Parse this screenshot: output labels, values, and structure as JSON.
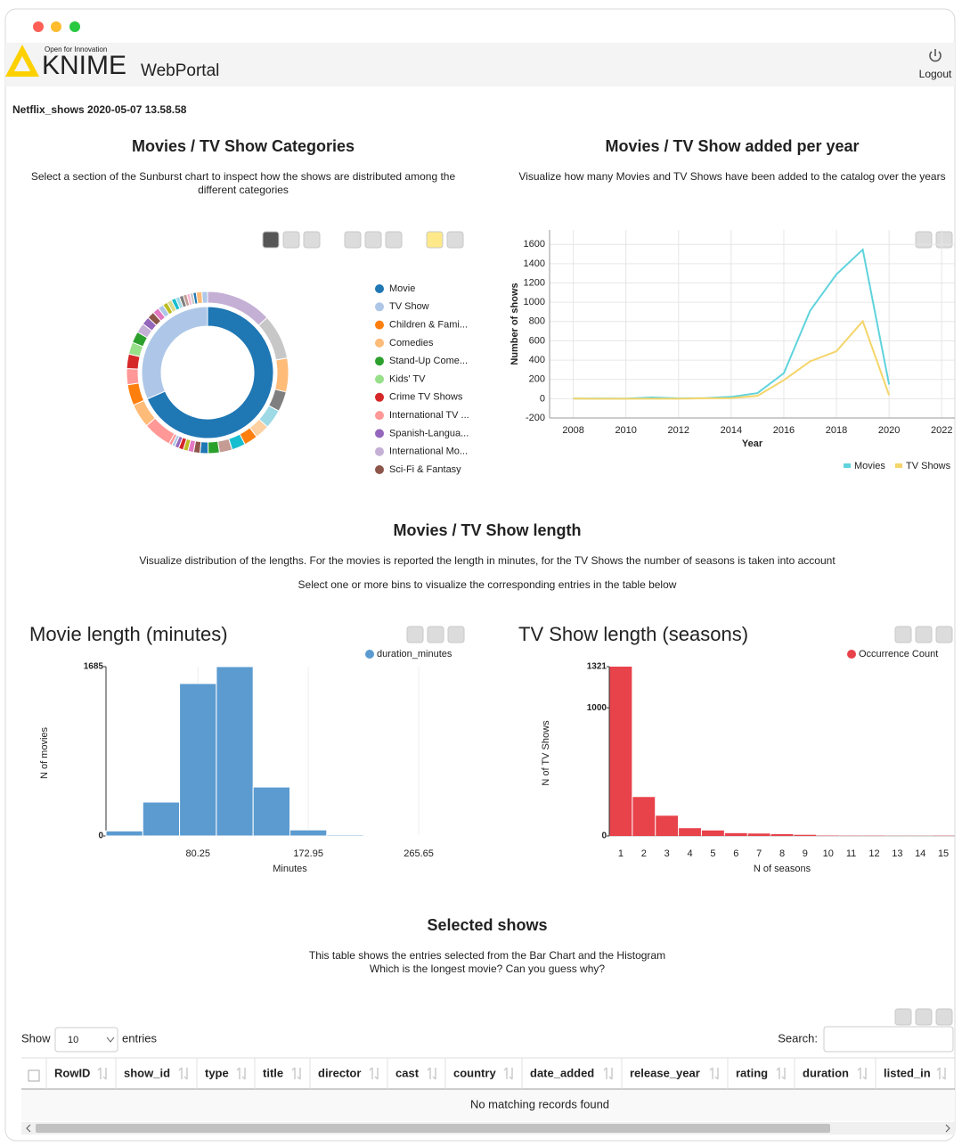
{
  "header": {
    "tagline": "Open for Innovation",
    "logo": "KNIME",
    "product": "WebPortal",
    "logout": "Logout"
  },
  "workflow_name": "Netflix_shows 2020-05-07 13.58.58",
  "sections": [
    {
      "title": "Movies / TV Show Categories",
      "description": [
        "Select a section of the Sunburst chart to inspect how the shows are distributed among the",
        "different categories"
      ]
    },
    {
      "title": "Movies / TV Show added per year",
      "description": [
        "Visualize how many Movies and TV Shows have been added to the catalog over the years"
      ]
    },
    {
      "title": "Movies / TV Show length",
      "description": [
        "Visualize distribution of the lengths. For the movies is reported the length in minutes, for the TV Shows the number of seasons is taken into account",
        "Select one or more bins to visualize the corresponding entries in the table below"
      ]
    },
    {
      "title": "Selected shows",
      "description": [
        "This table shows the entries selected from the Bar Chart and the Histogram",
        "Which is the longest movie? Can you guess why?"
      ]
    }
  ],
  "chart_data": [
    {
      "type": "sunburst",
      "legend": [
        {
          "name": "Movie",
          "color": "#1f77b4"
        },
        {
          "name": "TV Show",
          "color": "#aec7e8"
        },
        {
          "name": "Children & Fami...",
          "color": "#ff7f0e"
        },
        {
          "name": "Comedies",
          "color": "#ffbb78"
        },
        {
          "name": "Stand-Up Come...",
          "color": "#2ca02c"
        },
        {
          "name": "Kids' TV",
          "color": "#98df8a"
        },
        {
          "name": "Crime TV Shows",
          "color": "#d62728"
        },
        {
          "name": "International TV ...",
          "color": "#ff9896"
        },
        {
          "name": "Spanish-Langua...",
          "color": "#9467bd"
        },
        {
          "name": "International Mo...",
          "color": "#c5b0d5"
        },
        {
          "name": "Sci-Fi & Fantasy",
          "color": "#8c564b"
        }
      ],
      "rings": [
        {
          "values": [
            4265,
            1969
          ],
          "colors": [
            "#1f77b4",
            "#aec7e8"
          ]
        },
        {
          "values": [
            820,
            560,
            420,
            250,
            240,
            180,
            170,
            170,
            160,
            140,
            100,
            80,
            70,
            60,
            60,
            50,
            40,
            40,
            355,
            300,
            260,
            200,
            180,
            150,
            140,
            120,
            100,
            90,
            80,
            70,
            60,
            60,
            55,
            50,
            50,
            45,
            40,
            40,
            39,
            70,
            70
          ],
          "colors": [
            "#c5b0d5",
            "#c7c7c7",
            "#ffbb78",
            "#7f7f7f",
            "#9edae5",
            "#fdd0a2",
            "#ff7f0e",
            "#17becf",
            "#c49c94",
            "#2ca02c",
            "#1f77b4",
            "#8c564b",
            "#e377c2",
            "#bcbd22",
            "#d62728",
            "#9467bd",
            "#aec7e8",
            "#ff9896",
            "#ff9896",
            "#ffbb78",
            "#ff7f0e",
            "#ff9896",
            "#d62728",
            "#98df8a",
            "#2ca02c",
            "#c5b0d5",
            "#9467bd",
            "#8c564b",
            "#e377c2",
            "#aec7e8",
            "#bcbd22",
            "#dbdb8d",
            "#17becf",
            "#9edae5",
            "#7f7f7f",
            "#c49c94",
            "#f7b6d2",
            "#c7c7c7",
            "#1f77b4",
            "#ffbb78",
            "#aec7e8"
          ]
        }
      ]
    },
    {
      "type": "line",
      "x_label": "Year",
      "y_label": "Number of shows",
      "x": [
        2008,
        2009,
        2010,
        2011,
        2012,
        2013,
        2014,
        2015,
        2016,
        2017,
        2018,
        2019,
        2020
      ],
      "series": [
        {
          "name": "Movies",
          "color": "#5fd3dc",
          "values": [
            1,
            2,
            1,
            13,
            3,
            6,
            19,
            58,
            264,
            913,
            1290,
            1546,
            147
          ]
        },
        {
          "name": "TV Shows",
          "color": "#f4d56a",
          "values": [
            1,
            0,
            0,
            0,
            0,
            5,
            6,
            30,
            192,
            387,
            492,
            803,
            37
          ]
        }
      ],
      "xlim": [
        2007.1,
        2022.5
      ],
      "xticks": [
        2008,
        2010,
        2012,
        2014,
        2016,
        2018,
        2020,
        2022
      ],
      "ylim": [
        -200,
        1750
      ],
      "yticks": [
        -200,
        0,
        200,
        400,
        600,
        800,
        1000,
        1200,
        1400,
        1600
      ],
      "grid": true,
      "legend": "bottom-right"
    },
    {
      "type": "histogram",
      "title": "Movie length (minutes)",
      "x_label": "Minutes",
      "y_label": "N of movies",
      "series_name": "duration_minutes",
      "color": "#5b9bd0",
      "bins": [
        3,
        33.9,
        64.8,
        95.7,
        126.6,
        157.5,
        188.4,
        219.3,
        250.2,
        281.1,
        312
      ],
      "values": [
        50,
        337,
        1517,
        1685,
        487,
        60,
        12,
        6,
        3,
        2
      ],
      "xlim": [
        3,
        312
      ],
      "xticks": [
        80.25,
        172.95,
        265.65
      ],
      "ylim": [
        0,
        1685
      ],
      "yticks": [
        0,
        1685
      ],
      "grid": true
    },
    {
      "type": "bar",
      "title": "TV Show length (seasons)",
      "x_label": "N of seasons",
      "y_label": "N of TV Shows",
      "series_name": "Occurrence Count",
      "color": "#e8424b",
      "categories": [
        "1",
        "2",
        "3",
        "4",
        "5",
        "6",
        "7",
        "8",
        "9",
        "10",
        "11",
        "12",
        "13",
        "14",
        "15"
      ],
      "values": [
        1321,
        304,
        158,
        61,
        43,
        22,
        19,
        14,
        9,
        3,
        2,
        2,
        1,
        1,
        2
      ],
      "ylim": [
        0,
        1321
      ],
      "yticks": [
        0,
        1000,
        1321
      ],
      "grid": false
    }
  ],
  "table": {
    "show_label": "Show",
    "page_length": 10,
    "entries_label": "entries",
    "search_label": "Search:",
    "columns": [
      "RowID",
      "show_id",
      "type",
      "title",
      "director",
      "cast",
      "country",
      "date_added",
      "release_year",
      "rating",
      "duration",
      "listed_in"
    ],
    "empty_message": "No matching records found"
  }
}
